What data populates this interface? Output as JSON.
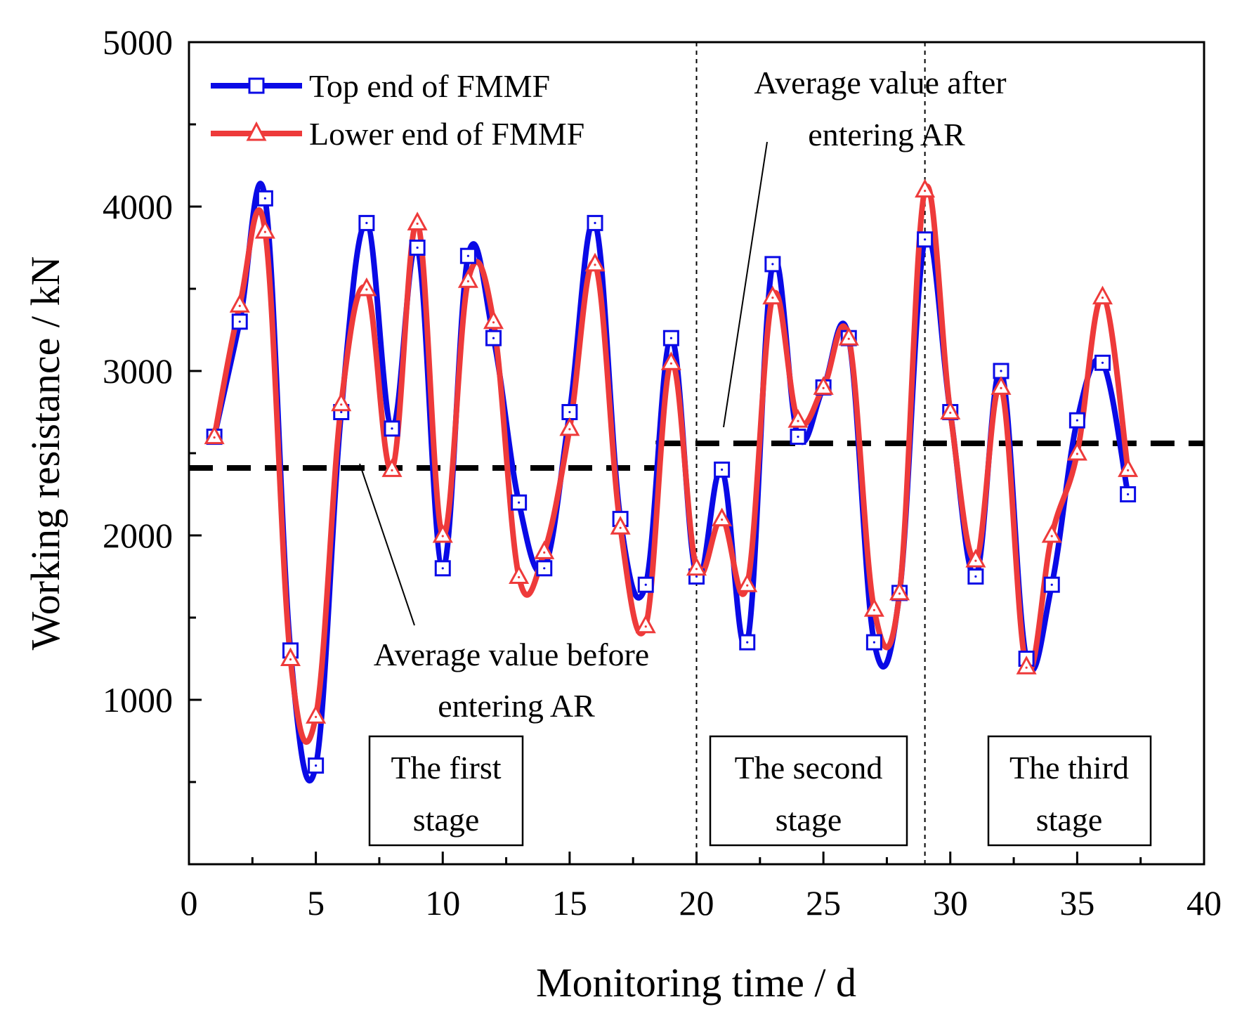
{
  "chart_data": {
    "type": "line",
    "xlabel": "Monitoring time / d",
    "ylabel": "Working resistance / kN",
    "xlim": [
      0,
      40
    ],
    "ylim": [
      0,
      5000
    ],
    "x_ticks": [
      0,
      5,
      10,
      15,
      20,
      25,
      30,
      35,
      40
    ],
    "x_tick_labels": [
      "0",
      "5",
      "10",
      "15",
      "20",
      "25",
      "30",
      "35",
      "40"
    ],
    "y_ticks": [
      1000,
      2000,
      3000,
      4000,
      5000
    ],
    "y_tick_labels": [
      "1000",
      "2000",
      "3000",
      "4000",
      "5000"
    ],
    "grid": false,
    "legend_position": "top-left",
    "series": [
      {
        "name": "Top end of FMMF",
        "color": "#0a0ae6",
        "marker": "square",
        "x": [
          1,
          2,
          3,
          4,
          5,
          6,
          7,
          8,
          9,
          10,
          11,
          12,
          13,
          14,
          15,
          16,
          17,
          18,
          19,
          20,
          21,
          22,
          23,
          24,
          25,
          26,
          27,
          28,
          29,
          30,
          31,
          32,
          33,
          34,
          35,
          36,
          37
        ],
        "values": [
          2600,
          3300,
          4050,
          1300,
          600,
          2750,
          3900,
          2650,
          3750,
          1800,
          3700,
          3200,
          2200,
          1800,
          2750,
          3900,
          2100,
          1700,
          3200,
          1750,
          2400,
          1350,
          3650,
          2600,
          2900,
          3200,
          1350,
          1650,
          3800,
          2750,
          1750,
          3000,
          1250,
          1700,
          2700,
          3050,
          2250
        ]
      },
      {
        "name": "Lower end of FMMF",
        "color": "#ee3a3a",
        "marker": "triangle",
        "x": [
          1,
          2,
          3,
          4,
          5,
          6,
          7,
          8,
          9,
          10,
          11,
          12,
          13,
          14,
          15,
          16,
          17,
          18,
          19,
          20,
          21,
          22,
          23,
          24,
          25,
          26,
          27,
          28,
          29,
          30,
          31,
          32,
          33,
          34,
          35,
          36,
          37
        ],
        "values": [
          2600,
          3400,
          3850,
          1250,
          900,
          2800,
          3500,
          2400,
          3900,
          2000,
          3550,
          3300,
          1750,
          1900,
          2650,
          3650,
          2050,
          1450,
          3050,
          1800,
          2100,
          1700,
          3450,
          2700,
          2900,
          3200,
          1550,
          1650,
          4100,
          2750,
          1850,
          2900,
          1200,
          2000,
          2500,
          3450,
          2400
        ]
      }
    ],
    "average_lines": [
      {
        "name": "Average value before entering AR",
        "value": 2410,
        "x_range": [
          0,
          18.5
        ]
      },
      {
        "name": "Average value after entering AR",
        "value": 2560,
        "x_range": [
          18.5,
          40
        ]
      }
    ],
    "stage_boundaries": [
      20,
      29
    ],
    "annotations": {
      "before_line1": "Average value before",
      "before_line2": "entering AR",
      "after_line1": "Average value after",
      "after_line2": "entering AR"
    },
    "stages": [
      {
        "line1": "The first",
        "line2": "stage"
      },
      {
        "line1": "The second",
        "line2": "stage"
      },
      {
        "line1": "The third",
        "line2": "stage"
      }
    ]
  }
}
